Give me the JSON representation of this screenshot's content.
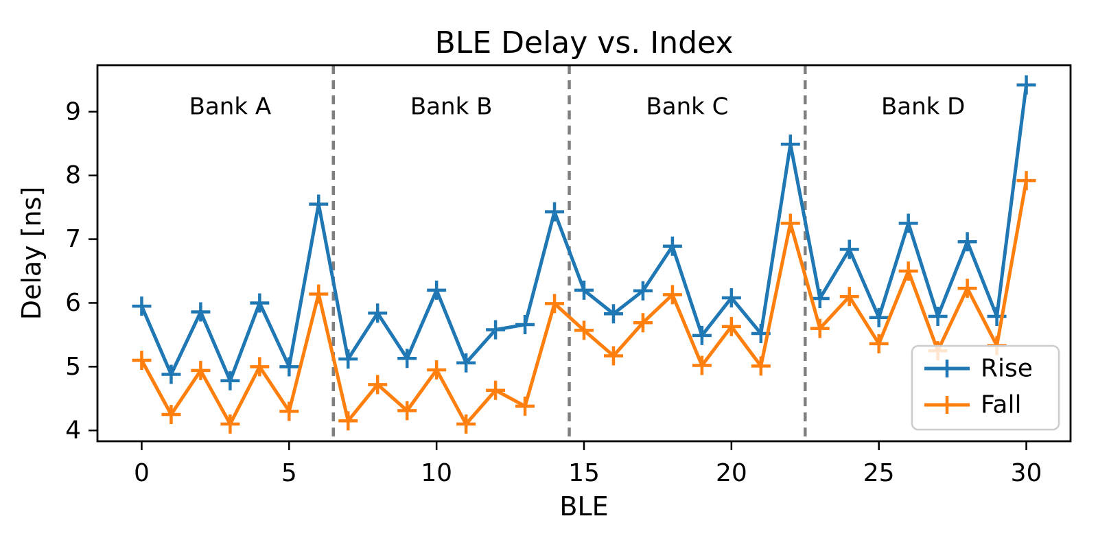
{
  "figure": {
    "title": "BLE Delay vs. Index",
    "xlabel": "BLE",
    "ylabel": "Delay [ns]"
  },
  "chart_data": {
    "type": "line",
    "title": "BLE Delay vs. Index",
    "xlabel": "BLE",
    "ylabel": "Delay [ns]",
    "x": [
      0,
      1,
      2,
      3,
      4,
      5,
      6,
      7,
      8,
      9,
      10,
      11,
      12,
      13,
      14,
      15,
      16,
      17,
      18,
      19,
      20,
      21,
      22,
      23,
      24,
      25,
      26,
      27,
      28,
      29,
      30
    ],
    "series": [
      {
        "name": "Rise",
        "color": "#1f77b4",
        "marker": "plus",
        "values": [
          5.95,
          4.88,
          5.86,
          4.78,
          6.0,
          5.0,
          7.55,
          5.12,
          5.84,
          5.13,
          6.2,
          5.06,
          5.58,
          5.66,
          7.43,
          6.2,
          5.83,
          6.19,
          6.89,
          5.49,
          6.08,
          5.52,
          8.49,
          6.07,
          6.84,
          5.77,
          7.25,
          5.79,
          6.96,
          5.79,
          9.42
        ]
      },
      {
        "name": "Fall",
        "color": "#ff7f0e",
        "marker": "plus",
        "values": [
          5.1,
          4.25,
          4.94,
          4.1,
          5.0,
          4.3,
          6.14,
          4.15,
          4.72,
          4.31,
          4.95,
          4.1,
          4.63,
          4.38,
          5.99,
          5.57,
          5.17,
          5.69,
          6.13,
          5.02,
          5.63,
          5.01,
          7.25,
          5.6,
          6.1,
          5.36,
          6.5,
          5.25,
          6.23,
          5.33,
          7.92
        ]
      }
    ],
    "xlim": [
      -1.5,
      31.5
    ],
    "ylim": [
      3.83,
      9.73
    ],
    "xticks": [
      0,
      5,
      10,
      15,
      20,
      25,
      30
    ],
    "yticks": [
      4,
      5,
      6,
      7,
      8,
      9
    ],
    "grid": false,
    "legend": {
      "position": "lower right",
      "entries": [
        "Rise",
        "Fall"
      ]
    },
    "vlines": {
      "positions": [
        6.5,
        14.5,
        22.5
      ],
      "color": "#7f7f7f",
      "style": "dashed"
    },
    "annotations": [
      {
        "text": "Bank A",
        "x": 3.0,
        "y": 9.08
      },
      {
        "text": "Bank B",
        "x": 10.5,
        "y": 9.08
      },
      {
        "text": "Bank C",
        "x": 18.5,
        "y": 9.08
      },
      {
        "text": "Bank D",
        "x": 26.5,
        "y": 9.08
      }
    ]
  }
}
